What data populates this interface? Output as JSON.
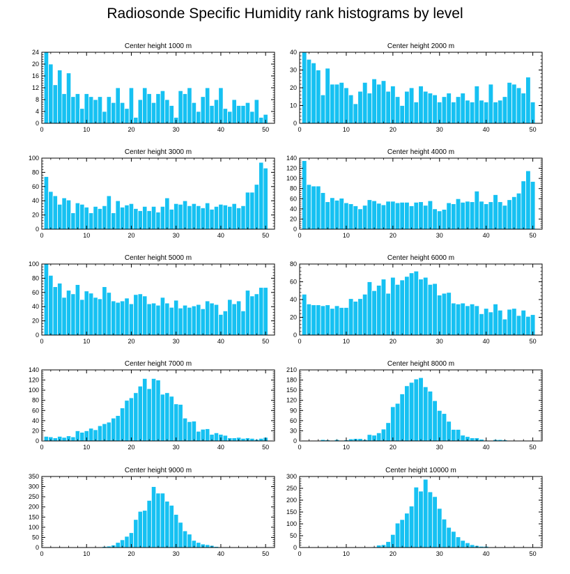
{
  "title": "Radiosonde Specific Humidity rank histograms by level",
  "colors": {
    "bar": "#16c1f2",
    "bar_edge": "#ffffff",
    "axis": "#000000"
  },
  "chart_data": [
    {
      "type": "bar",
      "title": "Center height 1000 m",
      "x_start": 1,
      "xlim": [
        0,
        52
      ],
      "xticks": [
        0,
        10,
        20,
        30,
        40,
        50
      ],
      "ylim": [
        0,
        24
      ],
      "yticks": [
        0,
        4,
        8,
        12,
        16,
        20,
        24
      ],
      "values": [
        24,
        20,
        13,
        18,
        10,
        17,
        9,
        10,
        5,
        10,
        9,
        8,
        9,
        4,
        9,
        7,
        12,
        7,
        5,
        12,
        2,
        8,
        12,
        10,
        7,
        10,
        11,
        8,
        6,
        2,
        11,
        10,
        12,
        7,
        4,
        9,
        12,
        6,
        8,
        12,
        5,
        4,
        8,
        6,
        6,
        7,
        4,
        8,
        2,
        3
      ]
    },
    {
      "type": "bar",
      "title": "Center height 2000 m",
      "x_start": 1,
      "xlim": [
        0,
        52
      ],
      "xticks": [
        0,
        10,
        20,
        30,
        40,
        50
      ],
      "ylim": [
        0,
        40
      ],
      "yticks": [
        0,
        10,
        20,
        30,
        40
      ],
      "values": [
        40,
        36,
        34,
        30,
        16,
        31,
        22,
        22,
        23,
        20,
        16,
        11,
        18,
        23,
        17,
        25,
        22,
        24,
        18,
        21,
        15,
        10,
        18,
        20,
        12,
        21,
        18,
        17,
        16,
        12,
        15,
        17,
        12,
        15,
        17,
        13,
        12,
        21,
        13,
        12,
        22,
        12,
        13,
        15,
        23,
        22,
        20,
        17,
        26,
        12
      ]
    },
    {
      "type": "bar",
      "title": "Center height 3000 m",
      "x_start": 1,
      "xlim": [
        0,
        52
      ],
      "xticks": [
        0,
        10,
        20,
        30,
        40,
        50
      ],
      "ylim": [
        0,
        100
      ],
      "yticks": [
        0,
        20,
        40,
        60,
        80,
        100
      ],
      "values": [
        74,
        53,
        47,
        35,
        44,
        41,
        23,
        37,
        35,
        31,
        23,
        32,
        29,
        33,
        47,
        23,
        40,
        31,
        34,
        36,
        29,
        26,
        32,
        26,
        32,
        24,
        32,
        44,
        28,
        36,
        35,
        40,
        33,
        36,
        33,
        30,
        37,
        28,
        32,
        35,
        34,
        32,
        36,
        30,
        33,
        52,
        52,
        63,
        94,
        86
      ]
    },
    {
      "type": "bar",
      "title": "Center height 4000 m",
      "x_start": 1,
      "xlim": [
        0,
        52
      ],
      "xticks": [
        0,
        10,
        20,
        30,
        40,
        50
      ],
      "ylim": [
        0,
        140
      ],
      "yticks": [
        0,
        20,
        40,
        60,
        80,
        100,
        120,
        140
      ],
      "values": [
        135,
        88,
        85,
        85,
        72,
        54,
        62,
        57,
        61,
        52,
        50,
        46,
        40,
        47,
        58,
        56,
        51,
        48,
        55,
        55,
        52,
        53,
        53,
        46,
        53,
        54,
        47,
        56,
        40,
        36,
        39,
        52,
        50,
        60,
        53,
        55,
        54,
        75,
        55,
        50,
        54,
        68,
        54,
        47,
        58,
        64,
        71,
        95,
        115,
        94
      ]
    },
    {
      "type": "bar",
      "title": "Center height 5000 m",
      "x_start": 1,
      "xlim": [
        0,
        52
      ],
      "xticks": [
        0,
        10,
        20,
        30,
        40,
        50
      ],
      "ylim": [
        0,
        100
      ],
      "yticks": [
        0,
        20,
        40,
        60,
        80,
        100
      ],
      "values": [
        100,
        84,
        68,
        73,
        53,
        63,
        58,
        71,
        50,
        62,
        59,
        53,
        51,
        68,
        60,
        48,
        46,
        48,
        52,
        44,
        57,
        58,
        55,
        44,
        45,
        42,
        53,
        45,
        39,
        49,
        38,
        42,
        39,
        41,
        43,
        37,
        48,
        45,
        43,
        29,
        34,
        50,
        44,
        48,
        34,
        63,
        55,
        58,
        67,
        67
      ]
    },
    {
      "type": "bar",
      "title": "Center height 6000 m",
      "x_start": 1,
      "xlim": [
        0,
        52
      ],
      "xticks": [
        0,
        10,
        20,
        30,
        40,
        50
      ],
      "ylim": [
        0,
        80
      ],
      "yticks": [
        0,
        20,
        40,
        60,
        80
      ],
      "values": [
        46,
        35,
        34,
        34,
        33,
        34,
        30,
        33,
        31,
        31,
        41,
        38,
        41,
        46,
        60,
        50,
        56,
        63,
        47,
        65,
        57,
        62,
        66,
        70,
        72,
        63,
        65,
        57,
        58,
        45,
        47,
        48,
        36,
        35,
        36,
        33,
        35,
        33,
        24,
        30,
        26,
        35,
        28,
        18,
        29,
        30,
        22,
        28,
        21,
        23
      ]
    },
    {
      "type": "bar",
      "title": "Center height 7000 m",
      "x_start": 1,
      "xlim": [
        0,
        52
      ],
      "xticks": [
        0,
        10,
        20,
        30,
        40,
        50
      ],
      "ylim": [
        0,
        140
      ],
      "yticks": [
        0,
        20,
        40,
        60,
        80,
        100,
        120,
        140
      ],
      "values": [
        9,
        8,
        6,
        9,
        7,
        10,
        8,
        20,
        17,
        20,
        25,
        22,
        30,
        34,
        37,
        45,
        50,
        65,
        80,
        85,
        95,
        108,
        123,
        103,
        123,
        120,
        92,
        95,
        88,
        73,
        72,
        45,
        38,
        39,
        19,
        23,
        24,
        13,
        16,
        13,
        11,
        6,
        6,
        7,
        5,
        6,
        5,
        3,
        5,
        7
      ]
    },
    {
      "type": "bar",
      "title": "Center height 8000 m",
      "x_start": 1,
      "xlim": [
        0,
        52
      ],
      "xticks": [
        0,
        10,
        20,
        30,
        40,
        50
      ],
      "ylim": [
        0,
        210
      ],
      "yticks": [
        0,
        30,
        60,
        90,
        120,
        150,
        180,
        210
      ],
      "values": [
        1,
        1,
        1,
        1,
        4,
        3,
        2,
        4,
        2,
        3,
        6,
        7,
        7,
        4,
        19,
        17,
        24,
        35,
        54,
        101,
        111,
        139,
        163,
        173,
        183,
        187,
        160,
        147,
        119,
        90,
        81,
        58,
        34,
        34,
        17,
        13,
        9,
        9,
        5,
        2,
        1,
        4,
        4,
        3,
        1,
        1,
        1,
        1,
        1,
        0
      ]
    },
    {
      "type": "bar",
      "title": "Center height 9000 m",
      "x_start": 1,
      "xlim": [
        0,
        52
      ],
      "xticks": [
        0,
        10,
        20,
        30,
        40,
        50
      ],
      "ylim": [
        0,
        350
      ],
      "yticks": [
        0,
        50,
        100,
        150,
        200,
        250,
        300,
        350
      ],
      "values": [
        0,
        0,
        0,
        0,
        0,
        0,
        1,
        1,
        1,
        1,
        2,
        3,
        3,
        5,
        7,
        12,
        25,
        38,
        55,
        73,
        138,
        178,
        183,
        232,
        300,
        268,
        268,
        228,
        208,
        163,
        124,
        82,
        66,
        35,
        25,
        17,
        14,
        10,
        5,
        3,
        2,
        2,
        1,
        1,
        0,
        0,
        0,
        0,
        0,
        0
      ]
    },
    {
      "type": "bar",
      "title": "Center height 10000 m",
      "x_start": 1,
      "xlim": [
        0,
        52
      ],
      "xticks": [
        0,
        10,
        20,
        30,
        40,
        50
      ],
      "ylim": [
        0,
        300
      ],
      "yticks": [
        0,
        50,
        100,
        150,
        200,
        250,
        300
      ],
      "values": [
        0,
        0,
        0,
        0,
        0,
        0,
        0,
        0,
        0,
        0,
        0,
        0,
        0,
        0,
        1,
        3,
        10,
        12,
        25,
        55,
        103,
        118,
        145,
        175,
        255,
        238,
        288,
        235,
        215,
        165,
        120,
        85,
        68,
        45,
        30,
        20,
        12,
        8,
        5,
        5,
        2,
        2,
        1,
        1,
        1,
        0,
        0,
        0,
        0,
        0
      ]
    }
  ]
}
